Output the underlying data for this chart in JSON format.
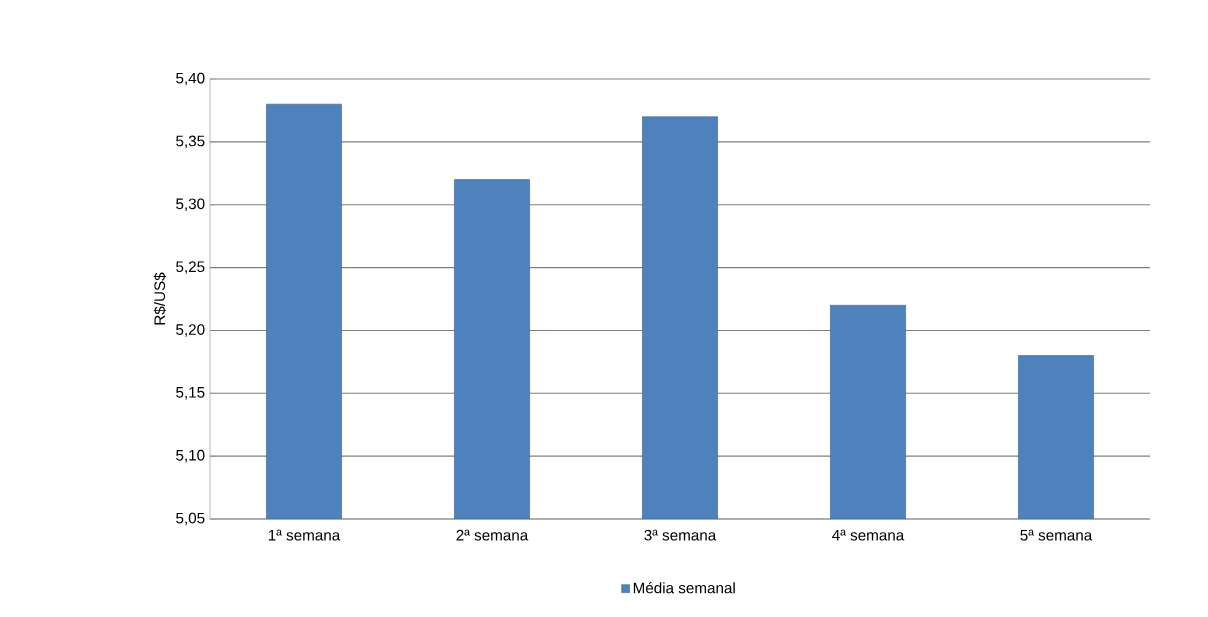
{
  "chart_data": {
    "type": "bar",
    "ylabel": "R$/US$",
    "categories": [
      "1ª semana",
      "2ª semana",
      "3ª semana",
      "4ª semana",
      "5ª semana"
    ],
    "series": [
      {
        "name": "Média semanal",
        "color": "#4f81bd",
        "values": [
          5.38,
          5.32,
          5.37,
          5.22,
          5.18
        ]
      }
    ],
    "ylim": [
      5.05,
      5.4
    ],
    "yticks": [
      {
        "value": 5.05,
        "label": "5,05"
      },
      {
        "value": 5.1,
        "label": "5,10"
      },
      {
        "value": 5.15,
        "label": "5,15"
      },
      {
        "value": 5.2,
        "label": "5,20"
      },
      {
        "value": 5.25,
        "label": "5,25"
      },
      {
        "value": 5.3,
        "label": "5,30"
      },
      {
        "value": 5.35,
        "label": "5,35"
      },
      {
        "value": 5.4,
        "label": "5,40"
      }
    ],
    "grid": "y",
    "legend": "bottom"
  }
}
